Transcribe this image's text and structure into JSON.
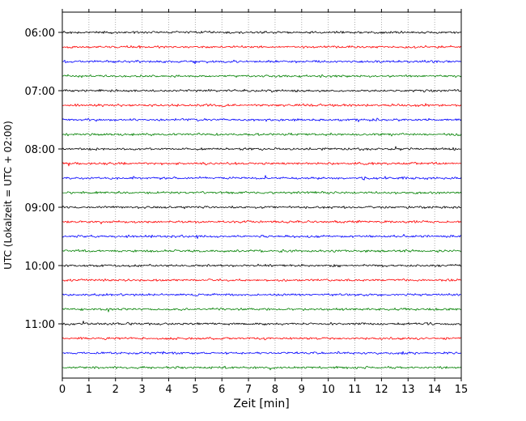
{
  "figure": {
    "xlabel": "Zeit  [min]",
    "ylabel": "UTC (Lokalzeit = UTC + 02:00)"
  },
  "chart_data": {
    "type": "line",
    "subtype": "helicorder-dayplot",
    "title": "",
    "xlabel": "Zeit  [min]",
    "ylabel": "UTC (Lokalzeit = UTC + 02:00)",
    "xlim": [
      0,
      15
    ],
    "x_ticks": [
      0,
      1,
      2,
      3,
      4,
      5,
      6,
      7,
      8,
      9,
      10,
      11,
      12,
      13,
      14,
      15
    ],
    "minutes_per_row": 15,
    "grid": {
      "vertical": true,
      "style": "dotted",
      "color": "#999999"
    },
    "hour_tick_labels": [
      "06:00",
      "07:00",
      "08:00",
      "09:00",
      "10:00",
      "11:00"
    ],
    "colors_cycle": [
      "#000000",
      "#ff0000",
      "#0000ff",
      "#008000"
    ],
    "traces": [
      {
        "start": "06:00",
        "color": "#000000"
      },
      {
        "start": "06:15",
        "color": "#ff0000"
      },
      {
        "start": "06:30",
        "color": "#0000ff"
      },
      {
        "start": "06:45",
        "color": "#008000"
      },
      {
        "start": "07:00",
        "color": "#000000"
      },
      {
        "start": "07:15",
        "color": "#ff0000"
      },
      {
        "start": "07:30",
        "color": "#0000ff"
      },
      {
        "start": "07:45",
        "color": "#008000"
      },
      {
        "start": "08:00",
        "color": "#000000"
      },
      {
        "start": "08:15",
        "color": "#ff0000"
      },
      {
        "start": "08:30",
        "color": "#0000ff"
      },
      {
        "start": "08:45",
        "color": "#008000"
      },
      {
        "start": "09:00",
        "color": "#000000"
      },
      {
        "start": "09:15",
        "color": "#ff0000"
      },
      {
        "start": "09:30",
        "color": "#0000ff"
      },
      {
        "start": "09:45",
        "color": "#008000"
      },
      {
        "start": "10:00",
        "color": "#000000"
      },
      {
        "start": "10:15",
        "color": "#ff0000"
      },
      {
        "start": "10:30",
        "color": "#0000ff"
      },
      {
        "start": "10:45",
        "color": "#008000"
      },
      {
        "start": "11:00",
        "color": "#000000"
      },
      {
        "start": "11:15",
        "color": "#ff0000"
      },
      {
        "start": "11:30",
        "color": "#0000ff"
      },
      {
        "start": "11:45",
        "color": "#008000"
      }
    ]
  }
}
